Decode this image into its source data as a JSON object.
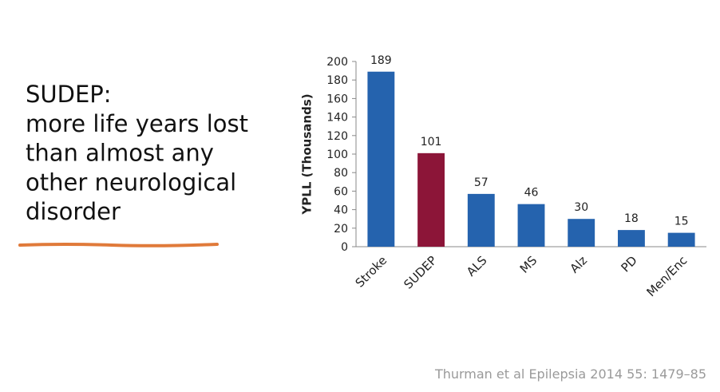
{
  "slide": {
    "heading": [
      "SUDEP:",
      "more life years lost",
      "than almost any",
      "other neurological",
      "disorder"
    ],
    "citation": "Thurman et al Epilepsia 2014 55: 1479–85"
  },
  "chart_data": {
    "type": "bar",
    "y_label": "YPLL (Thousands)",
    "categories": [
      "Stroke",
      "SUDEP",
      "ALS",
      "MS",
      "Alz",
      "PD",
      "Men/Enc"
    ],
    "values": [
      189,
      101,
      57,
      46,
      30,
      18,
      15
    ],
    "colors": [
      "#2563ae",
      "#8c1538",
      "#2563ae",
      "#2563ae",
      "#2563ae",
      "#2563ae",
      "#2563ae"
    ],
    "ylim": [
      0,
      200
    ],
    "yticks": [
      0,
      20,
      40,
      60,
      80,
      100,
      120,
      140,
      160,
      180,
      200
    ],
    "grid": false
  }
}
